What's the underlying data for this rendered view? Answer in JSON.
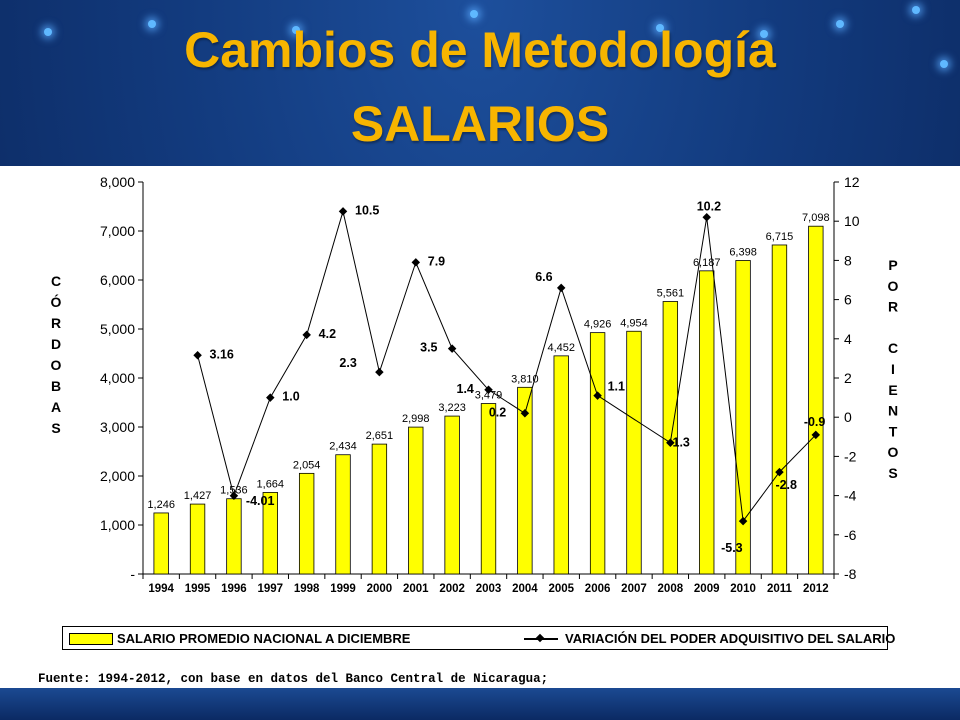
{
  "title": {
    "line1": "Cambios de Metodología",
    "line2": "SALARIOS"
  },
  "colors": {
    "title": "#f7b500",
    "bar": "#ffff00",
    "background": "#123a7d"
  },
  "chart_data": {
    "type": "bar",
    "categories": [
      "1994",
      "1995",
      "1996",
      "1997",
      "1998",
      "1999",
      "2000",
      "2001",
      "2002",
      "2003",
      "2004",
      "2005",
      "2006",
      "2007",
      "2008",
      "2009",
      "2010",
      "2011",
      "2012"
    ],
    "series": [
      {
        "name": "SALARIO PROMEDIO NACIONAL A DICIEMBRE",
        "type": "bar",
        "axis": "left",
        "values": [
          1246,
          1427,
          1536,
          1664,
          2054,
          2434,
          2651,
          2998,
          3223,
          3479,
          3810,
          4452,
          4926,
          4954,
          5561,
          6187,
          6398,
          6715,
          7098
        ],
        "labels": [
          "1,246",
          "1,427",
          "1,536",
          "1,664",
          "2,054",
          "2,434",
          "2,651",
          "2,998",
          "3,223",
          "3,479",
          "3,810",
          "4,452",
          "4,926",
          "4,954",
          "5,561",
          "6,187",
          "6,398",
          "6,715",
          "7,098"
        ]
      },
      {
        "name": "VARIACIÓN DEL PODER ADQUISITIVO DEL SALARIO",
        "type": "line",
        "axis": "right",
        "values": [
          null,
          3.16,
          -4.01,
          1.0,
          4.2,
          10.5,
          2.3,
          7.9,
          3.5,
          1.4,
          0.2,
          6.6,
          1.1,
          null,
          -1.3,
          10.2,
          -5.3,
          -2.8,
          -0.9
        ],
        "labels": [
          "",
          "3.16",
          "-4.01",
          "1.0",
          "4.2",
          "10.5",
          "2.3",
          "7.9",
          "3.5",
          "1.4",
          "0.2",
          "6.6",
          "1.1",
          "",
          "-1.3",
          "10.2",
          "-5.3",
          "-2.8",
          "-0.9"
        ]
      }
    ],
    "ylabel": "CÓRDOBAS",
    "y2label": "POR CIENTOS",
    "ylim": [
      0,
      8000
    ],
    "y2lim": [
      -8,
      12
    ],
    "yticks": [
      "-",
      "1,000",
      "2,000",
      "3,000",
      "4,000",
      "5,000",
      "6,000",
      "7,000",
      "8,000"
    ],
    "y2ticks": [
      "-8",
      "-6",
      "-4",
      "-2",
      "0",
      "2",
      "4",
      "6",
      "8",
      "10",
      "12"
    ],
    "grid": false,
    "legend": "bottom"
  },
  "legend": {
    "bar_label": "SALARIO PROMEDIO NACIONAL A DICIEMBRE",
    "line_label": "VARIACIÓN DEL PODER ADQUISITIVO DEL SALARIO"
  },
  "source": "Fuente: 1994-2012, con base en datos del Banco Central de Nicaragua;"
}
